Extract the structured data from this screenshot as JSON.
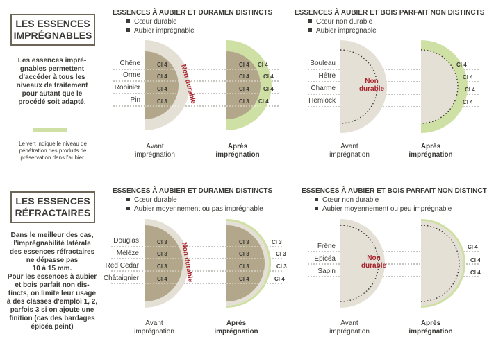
{
  "colors": {
    "duramen": "#b3a78b",
    "aubier": "#e5e0d5",
    "impregnation_green": "#cfe0a4",
    "non_durable_red": "#a8232e",
    "text": "#3b3a36"
  },
  "left_panel": {
    "impregnable_title_line1": "LES ESSENCES",
    "impregnable_title_line2": "IMPRÉGNABLES",
    "impregnable_text": [
      "Les essences impré-",
      "gnables permettent",
      "d'accéder à tous les",
      "niveaux de traitement",
      "pour autant que le",
      "procédé soit adapté."
    ],
    "legend_text": [
      "Le vert indique le niveau de",
      "pénétration des produits de",
      "préservation dans l'aubier."
    ],
    "refractory_title_line1": "LES ESSENCES",
    "refractory_title_line2": "RÉFRACTAIRES",
    "refractory_text": [
      "Dans le meilleur des cas,",
      "l'imprégnabilité latérale",
      "des essences réfractaires",
      "ne dépasse pas",
      "10 à 15 mm.",
      "Pour les essences à aubier",
      "et bois parfait non dis-",
      "tincts, on limite leur usage",
      "à des classes d'emploi 1, 2,",
      "parfois 3 si on ajoute une",
      "finition (cas des bardages",
      "épicéa peint)"
    ]
  },
  "sections": {
    "top_left": {
      "title": "ESSENCES À AUBIER ET DURAMEN DISTINCTS",
      "bullets": [
        "Cœur durable",
        "Aubier imprégnable"
      ],
      "species": [
        "Chêne",
        "Orme",
        "Robinier",
        "Pin"
      ],
      "before_ci": [
        "Cl 4",
        "Cl 4",
        "Cl 4",
        "Cl 3"
      ],
      "after_ci": [
        "Cl 4",
        "Cl 4",
        "Cl 4",
        "Cl 3"
      ],
      "after_outer_ci": [
        "Cl 4",
        "Cl 4",
        "Cl 4",
        "Cl 4"
      ],
      "non_durable": "Non durable",
      "caption_before": [
        "Avant",
        "imprégnation"
      ],
      "caption_after": [
        "Après",
        "imprégnation"
      ]
    },
    "top_right": {
      "title": "ESSENCES À AUBIER ET BOIS PARFAIT NON DISTINCTS",
      "bullets": [
        "Cœur non durable",
        "Aubier imprégnable"
      ],
      "species": [
        "Bouleau",
        "Hêtre",
        "Charme",
        "Hemlock"
      ],
      "after_outer_ci": [
        "Cl 4",
        "Cl 4",
        "Cl 4",
        "Cl 4"
      ],
      "non_durable_line1": "Non",
      "non_durable_line2": "durable",
      "caption_before": [
        "Avant",
        "imprégnation"
      ],
      "caption_after": [
        "Après",
        "imprégnation"
      ]
    },
    "bottom_left": {
      "title": "ESSENCES À AUBIER ET DURAMEN DISTINCTS",
      "bullets": [
        "Cœur durable",
        "Aubier moyennement ou pas imprégnable"
      ],
      "species": [
        "Douglas",
        "Mélèze",
        "Red Cedar",
        "Châtaignier"
      ],
      "before_ci": [
        "Cl 3",
        "Cl 3",
        "Cl 3",
        "Cl 4"
      ],
      "after_ci": [
        "Cl 3",
        "Cl 3",
        "Cl 3",
        "Cl 4"
      ],
      "after_outer_ci": [
        "Cl 3",
        "Cl 3",
        "Cl 3",
        "Cl 4"
      ],
      "non_durable": "Non durable",
      "caption_before": [
        "Avant",
        "imprégnation"
      ],
      "caption_after": [
        "Après",
        "imprégnation"
      ]
    },
    "bottom_right": {
      "title": "ESSENCES À AUBIER ET BOIS PARFAIT NON DISTINCTS",
      "bullets": [
        "Cœur non durable",
        "Aubier moyennement ou peu imprégnable"
      ],
      "species": [
        "Frêne",
        "Epicéa",
        "Sapin"
      ],
      "after_outer_ci": [
        "Cl 4",
        "Cl 4",
        "Cl 4"
      ],
      "non_durable_line1": "Non",
      "non_durable_line2": "durable",
      "caption_before": [
        "Avant",
        "imprégnation"
      ],
      "caption_after": [
        "Après",
        "imprégnation"
      ]
    }
  }
}
